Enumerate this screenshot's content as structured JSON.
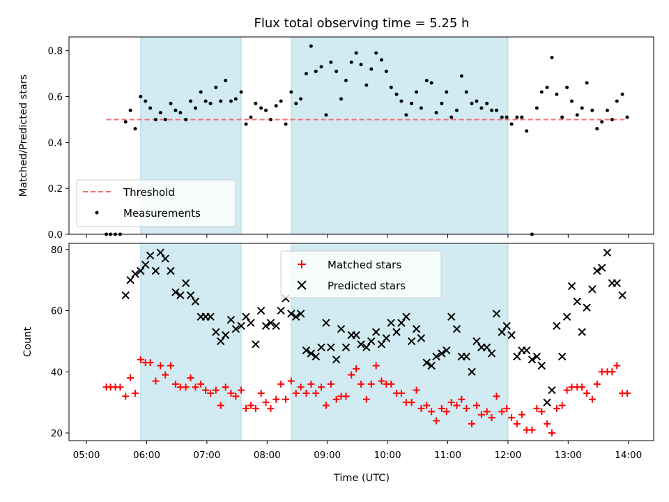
{
  "chart_data": {
    "type": "scatter",
    "title": "Flux total observing time = 5.25 h",
    "xlabel": "Time (UTC)",
    "x_ticks": [
      "05:00",
      "06:00",
      "07:00",
      "08:00",
      "09:00",
      "10:00",
      "11:00",
      "12:00",
      "13:00",
      "14:00"
    ],
    "xlim_hours": [
      4.71,
      14.42
    ],
    "shaded_intervals_hours": [
      [
        5.9,
        7.57
      ],
      [
        8.4,
        12.0
      ]
    ],
    "shade_color": "#add8e6",
    "panels": [
      {
        "ylabel": "Matched/Predicted stars",
        "ylim": [
          0,
          0.86
        ],
        "y_ticks": [
          0.0,
          0.2,
          0.4,
          0.6,
          0.8
        ],
        "threshold": {
          "name": "Threshold",
          "value": 0.5,
          "x_range_hours": [
            5.33,
            13.98
          ],
          "color": "#f07070"
        },
        "series": [
          {
            "name": "Measurements",
            "color": "#000000",
            "x_hours": [
              5.33,
              5.4,
              5.48,
              5.56,
              5.65,
              5.73,
              5.81,
              5.9,
              5.98,
              6.06,
              6.15,
              6.23,
              6.31,
              6.4,
              6.48,
              6.56,
              6.65,
              6.73,
              6.81,
              6.9,
              6.98,
              7.06,
              7.15,
              7.23,
              7.31,
              7.4,
              7.48,
              7.57,
              7.65,
              7.73,
              7.81,
              7.9,
              7.98,
              8.06,
              8.15,
              8.23,
              8.31,
              8.4,
              8.48,
              8.56,
              8.65,
              8.73,
              8.81,
              8.9,
              8.98,
              9.06,
              9.15,
              9.23,
              9.31,
              9.4,
              9.48,
              9.56,
              9.65,
              9.73,
              9.81,
              9.9,
              9.98,
              10.06,
              10.15,
              10.23,
              10.31,
              10.4,
              10.48,
              10.56,
              10.65,
              10.73,
              10.81,
              10.9,
              10.98,
              11.06,
              11.15,
              11.23,
              11.31,
              11.4,
              11.48,
              11.56,
              11.65,
              11.73,
              11.81,
              11.9,
              11.98,
              12.06,
              12.15,
              12.23,
              12.31,
              12.4,
              12.48,
              12.56,
              12.65,
              12.73,
              12.81,
              12.9,
              12.98,
              13.06,
              13.15,
              13.23,
              13.31,
              13.4,
              13.48,
              13.56,
              13.65,
              13.73,
              13.81,
              13.9,
              13.98
            ],
            "y": [
              0.0,
              0.0,
              0.0,
              0.0,
              0.49,
              0.54,
              0.46,
              0.6,
              0.58,
              0.55,
              0.5,
              0.53,
              0.5,
              0.57,
              0.54,
              0.53,
              0.5,
              0.58,
              0.55,
              0.62,
              0.58,
              0.57,
              0.64,
              0.58,
              0.67,
              0.58,
              0.59,
              0.62,
              0.48,
              0.51,
              0.57,
              0.55,
              0.54,
              0.5,
              0.56,
              0.58,
              0.48,
              0.62,
              0.57,
              0.59,
              0.7,
              0.82,
              0.71,
              0.73,
              0.52,
              0.75,
              0.71,
              0.59,
              0.67,
              0.75,
              0.79,
              0.74,
              0.65,
              0.72,
              0.79,
              0.76,
              0.71,
              0.64,
              0.61,
              0.58,
              0.52,
              0.57,
              0.62,
              0.55,
              0.67,
              0.66,
              0.53,
              0.57,
              0.62,
              0.51,
              0.54,
              0.69,
              0.62,
              0.57,
              0.58,
              0.55,
              0.57,
              0.54,
              0.54,
              0.51,
              0.51,
              0.48,
              0.51,
              0.51,
              0.45,
              0.0,
              0.55,
              0.62,
              0.64,
              0.77,
              0.61,
              0.51,
              0.64,
              0.58,
              0.52,
              0.55,
              0.66,
              0.54,
              0.46,
              0.49,
              0.54,
              0.5,
              0.58,
              0.61,
              0.51
            ]
          }
        ]
      },
      {
        "ylabel": "Count",
        "ylim": [
          17.5,
          82
        ],
        "y_ticks": [
          20,
          40,
          60,
          80
        ],
        "series": [
          {
            "name": "Matched stars",
            "marker": "+",
            "color": "#ff0000",
            "x_hours": [
              5.33,
              5.4,
              5.48,
              5.56,
              5.65,
              5.73,
              5.81,
              5.9,
              5.98,
              6.06,
              6.15,
              6.23,
              6.31,
              6.4,
              6.48,
              6.56,
              6.65,
              6.73,
              6.81,
              6.9,
              6.98,
              7.06,
              7.15,
              7.23,
              7.31,
              7.4,
              7.48,
              7.57,
              7.65,
              7.73,
              7.81,
              7.9,
              7.98,
              8.06,
              8.15,
              8.23,
              8.31,
              8.4,
              8.48,
              8.56,
              8.65,
              8.73,
              8.81,
              8.9,
              8.98,
              9.06,
              9.15,
              9.23,
              9.31,
              9.4,
              9.48,
              9.56,
              9.65,
              9.73,
              9.81,
              9.9,
              9.98,
              10.06,
              10.15,
              10.23,
              10.31,
              10.4,
              10.48,
              10.56,
              10.65,
              10.73,
              10.81,
              10.9,
              10.98,
              11.06,
              11.15,
              11.23,
              11.31,
              11.4,
              11.48,
              11.56,
              11.65,
              11.73,
              11.81,
              11.9,
              11.98,
              12.06,
              12.15,
              12.23,
              12.31,
              12.4,
              12.48,
              12.56,
              12.65,
              12.73,
              12.81,
              12.9,
              12.98,
              13.06,
              13.15,
              13.23,
              13.31,
              13.4,
              13.48,
              13.56,
              13.65,
              13.73,
              13.81,
              13.9,
              13.98
            ],
            "y": [
              35,
              35,
              35,
              35,
              32,
              38,
              33,
              44,
              43,
              43,
              37,
              42,
              39,
              42,
              36,
              35,
              35,
              38,
              35,
              36,
              34,
              33,
              34,
              29,
              35,
              33,
              32,
              34,
              28,
              29,
              28,
              33,
              30,
              28,
              31,
              36,
              31,
              37,
              33,
              35,
              33,
              36,
              33,
              35,
              29,
              36,
              31,
              32,
              32,
              39,
              41,
              36,
              31,
              36,
              42,
              37,
              36,
              36,
              33,
              33,
              30,
              30,
              34,
              28,
              29,
              27,
              24,
              28,
              27,
              30,
              29,
              31,
              28,
              23,
              29,
              26,
              27,
              25,
              32,
              27,
              28,
              25,
              23,
              26,
              21,
              21,
              28,
              27,
              23,
              20,
              28,
              29,
              34,
              35,
              35,
              35,
              33,
              31,
              36,
              40,
              40,
              40,
              42,
              33,
              33
            ]
          },
          {
            "name": "Predicted stars",
            "marker": "x",
            "color": "#000000",
            "x_hours": [
              5.65,
              5.73,
              5.81,
              5.9,
              5.98,
              6.06,
              6.15,
              6.23,
              6.31,
              6.4,
              6.48,
              6.56,
              6.65,
              6.73,
              6.81,
              6.9,
              6.98,
              7.06,
              7.15,
              7.23,
              7.31,
              7.4,
              7.48,
              7.57,
              7.65,
              7.73,
              7.81,
              7.9,
              7.98,
              8.06,
              8.15,
              8.23,
              8.31,
              8.4,
              8.48,
              8.56,
              8.65,
              8.73,
              8.81,
              8.9,
              8.98,
              9.06,
              9.15,
              9.23,
              9.31,
              9.4,
              9.48,
              9.56,
              9.65,
              9.73,
              9.81,
              9.9,
              9.98,
              10.06,
              10.15,
              10.23,
              10.31,
              10.4,
              10.48,
              10.56,
              10.65,
              10.73,
              10.81,
              10.9,
              10.98,
              11.06,
              11.15,
              11.23,
              11.31,
              11.4,
              11.48,
              11.56,
              11.65,
              11.73,
              11.81,
              11.9,
              11.98,
              12.06,
              12.15,
              12.23,
              12.31,
              12.4,
              12.48,
              12.56,
              12.65,
              12.73,
              12.81,
              12.9,
              12.98,
              13.06,
              13.15,
              13.23,
              13.31,
              13.4,
              13.48,
              13.56,
              13.65,
              13.73,
              13.81,
              13.9
            ],
            "y": [
              65,
              70,
              72,
              73,
              75,
              78,
              73,
              79,
              77,
              73,
              66,
              65,
              69,
              65,
              63,
              58,
              58,
              58,
              53,
              50,
              52,
              57,
              54,
              55,
              58,
              56,
              49,
              60,
              55,
              56,
              55,
              60,
              64,
              59,
              58,
              59,
              47,
              46,
              45,
              48,
              56,
              48,
              44,
              54,
              48,
              52,
              52,
              49,
              48,
              50,
              53,
              49,
              51,
              56,
              53,
              56,
              58,
              50,
              54,
              51,
              43,
              42,
              45,
              46,
              47,
              58,
              54,
              45,
              45,
              40,
              50,
              48,
              48,
              46,
              59,
              53,
              55,
              52,
              45,
              47,
              47,
              44,
              45,
              42,
              30,
              34,
              55,
              45,
              58,
              68,
              63,
              53,
              61,
              67,
              73,
              74,
              79,
              69,
              69,
              65
            ]
          }
        ]
      }
    ]
  }
}
